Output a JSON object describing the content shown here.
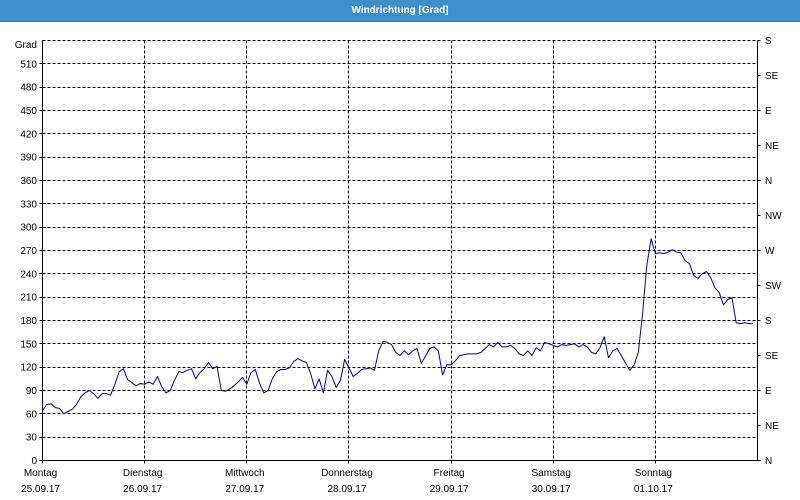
{
  "colors": {
    "title_bar": "#3e8fc9",
    "title_text": "#ffffff",
    "line": "#0000a8",
    "grid": "#000000",
    "axis": "#000000"
  },
  "chart_data": {
    "type": "line",
    "title": "Windrichtung [Grad]",
    "xlabel": "",
    "ylabel": "Grad",
    "ylim": [
      0,
      540
    ],
    "xlim": [
      "25.09.17 00:00",
      "02.10.17 00:00"
    ],
    "grid": true,
    "y_ticks": [
      0,
      30,
      60,
      90,
      120,
      150,
      180,
      210,
      240,
      270,
      300,
      330,
      360,
      390,
      420,
      450,
      480,
      510
    ],
    "y2_ticks": [
      {
        "value": 0,
        "label": "N"
      },
      {
        "value": 45,
        "label": "NE"
      },
      {
        "value": 90,
        "label": "E"
      },
      {
        "value": 135,
        "label": "SE"
      },
      {
        "value": 180,
        "label": "S"
      },
      {
        "value": 225,
        "label": "SW"
      },
      {
        "value": 270,
        "label": "W"
      },
      {
        "value": 315,
        "label": "NW"
      },
      {
        "value": 360,
        "label": "N"
      },
      {
        "value": 405,
        "label": "NE"
      },
      {
        "value": 450,
        "label": "E"
      },
      {
        "value": 495,
        "label": "SE"
      },
      {
        "value": 540,
        "label": "S"
      }
    ],
    "x_ticks": [
      {
        "day": "Montag",
        "date": "25.09.17"
      },
      {
        "day": "Dienstag",
        "date": "26.09.17"
      },
      {
        "day": "Mittwoch",
        "date": "27.09.17"
      },
      {
        "day": "Donnerstag",
        "date": "28.09.17"
      },
      {
        "day": "Freitag",
        "date": "29.09.17"
      },
      {
        "day": "Samstag",
        "date": "30.09.17"
      },
      {
        "day": "Sonntag",
        "date": "01.10.17"
      }
    ],
    "x": [
      "25.09.17 00:00",
      "25.09.17 01:00",
      "25.09.17 02:00",
      "25.09.17 03:00",
      "25.09.17 04:00",
      "25.09.17 05:00",
      "25.09.17 06:00",
      "25.09.17 07:00",
      "25.09.17 08:00",
      "25.09.17 09:00",
      "25.09.17 10:00",
      "25.09.17 11:00",
      "25.09.17 12:00",
      "25.09.17 13:00",
      "25.09.17 14:00",
      "25.09.17 15:00",
      "25.09.17 16:00",
      "25.09.17 17:00",
      "25.09.17 18:00",
      "25.09.17 19:00",
      "25.09.17 20:00",
      "25.09.17 21:00",
      "25.09.17 22:00",
      "25.09.17 23:00",
      "26.09.17 00:00",
      "26.09.17 01:00",
      "26.09.17 02:00",
      "26.09.17 03:00",
      "26.09.17 04:00",
      "26.09.17 05:00",
      "26.09.17 06:00",
      "26.09.17 07:00",
      "26.09.17 08:00",
      "26.09.17 09:00",
      "26.09.17 10:00",
      "26.09.17 11:00",
      "26.09.17 12:00",
      "26.09.17 13:00",
      "26.09.17 14:00",
      "26.09.17 15:00",
      "26.09.17 16:00",
      "26.09.17 17:00",
      "26.09.17 18:00",
      "26.09.17 19:00",
      "26.09.17 20:00",
      "26.09.17 21:00",
      "26.09.17 22:00",
      "26.09.17 23:00",
      "27.09.17 00:00",
      "27.09.17 01:00",
      "27.09.17 02:00",
      "27.09.17 03:00",
      "27.09.17 04:00",
      "27.09.17 05:00",
      "27.09.17 06:00",
      "27.09.17 07:00",
      "27.09.17 08:00",
      "27.09.17 09:00",
      "27.09.17 10:00",
      "27.09.17 11:00",
      "27.09.17 12:00",
      "27.09.17 13:00",
      "27.09.17 14:00",
      "27.09.17 15:00",
      "27.09.17 16:00",
      "27.09.17 17:00",
      "27.09.17 18:00",
      "27.09.17 19:00",
      "27.09.17 20:00",
      "27.09.17 21:00",
      "27.09.17 22:00",
      "27.09.17 23:00",
      "28.09.17 00:00",
      "28.09.17 01:00",
      "28.09.17 02:00",
      "28.09.17 03:00",
      "28.09.17 04:00",
      "28.09.17 05:00",
      "28.09.17 06:00",
      "28.09.17 07:00",
      "28.09.17 08:00",
      "28.09.17 09:00",
      "28.09.17 10:00",
      "28.09.17 11:00",
      "28.09.17 12:00",
      "28.09.17 13:00",
      "28.09.17 14:00",
      "28.09.17 15:00",
      "28.09.17 16:00",
      "28.09.17 17:00",
      "28.09.17 18:00",
      "28.09.17 19:00",
      "28.09.17 20:00",
      "28.09.17 21:00",
      "28.09.17 22:00",
      "28.09.17 23:00",
      "29.09.17 00:00",
      "29.09.17 01:00",
      "29.09.17 02:00",
      "29.09.17 03:00",
      "29.09.17 04:00",
      "29.09.17 05:00",
      "29.09.17 06:00",
      "29.09.17 07:00",
      "29.09.17 08:00",
      "29.09.17 09:00",
      "29.09.17 10:00",
      "29.09.17 11:00",
      "29.09.17 12:00",
      "29.09.17 13:00",
      "29.09.17 14:00",
      "29.09.17 15:00",
      "29.09.17 16:00",
      "29.09.17 17:00",
      "29.09.17 18:00",
      "29.09.17 19:00",
      "29.09.17 20:00",
      "29.09.17 21:00",
      "29.09.17 22:00",
      "29.09.17 23:00",
      "30.09.17 00:00",
      "30.09.17 01:00",
      "30.09.17 02:00",
      "30.09.17 03:00",
      "30.09.17 04:00",
      "30.09.17 05:00",
      "30.09.17 06:00",
      "30.09.17 07:00",
      "30.09.17 08:00",
      "30.09.17 09:00",
      "30.09.17 10:00",
      "30.09.17 11:00",
      "30.09.17 12:00",
      "30.09.17 13:00",
      "30.09.17 14:00",
      "30.09.17 15:00",
      "30.09.17 16:00",
      "30.09.17 17:00",
      "30.09.17 18:00",
      "30.09.17 19:00",
      "30.09.17 20:00",
      "30.09.17 21:00",
      "30.09.17 22:00",
      "30.09.17 23:00",
      "01.10.17 00:00",
      "01.10.17 01:00",
      "01.10.17 02:00",
      "01.10.17 03:00",
      "01.10.17 04:00",
      "01.10.17 05:00",
      "01.10.17 06:00",
      "01.10.17 07:00",
      "01.10.17 08:00",
      "01.10.17 09:00",
      "01.10.17 10:00",
      "01.10.17 11:00",
      "01.10.17 12:00",
      "01.10.17 13:00",
      "01.10.17 14:00",
      "01.10.17 15:00",
      "01.10.17 16:00",
      "01.10.17 17:00",
      "01.10.17 18:00",
      "01.10.17 19:00",
      "01.10.17 20:00",
      "01.10.17 21:00",
      "01.10.17 22:00",
      "01.10.17 23:00"
    ],
    "series": [
      {
        "values": [
          64,
          72,
          73,
          68,
          67,
          60,
          63,
          66,
          72,
          82,
          87,
          90,
          86,
          80,
          86,
          86,
          84,
          98,
          114,
          118,
          104,
          100,
          96,
          99,
          98,
          101,
          98,
          108,
          95,
          87,
          90,
          103,
          114,
          113,
          116,
          118,
          105,
          113,
          118,
          126,
          118,
          121,
          90,
          89,
          92,
          96,
          101,
          107,
          98,
          113,
          117,
          99,
          87,
          90,
          105,
          114,
          117,
          117,
          119,
          127,
          131,
          128,
          126,
          112,
          92,
          105,
          87,
          116,
          108,
          94,
          103,
          130,
          119,
          108,
          112,
          117,
          118,
          119,
          116,
          141,
          153,
          152,
          149,
          139,
          135,
          141,
          136,
          141,
          144,
          125,
          134,
          144,
          146,
          141,
          110,
          123,
          123,
          128,
          135,
          136,
          137,
          137,
          137,
          139,
          144,
          149,
          146,
          152,
          146,
          146,
          148,
          144,
          137,
          135,
          141,
          135,
          145,
          141,
          152,
          150,
          148,
          146,
          149,
          148,
          149,
          150,
          146,
          149,
          146,
          139,
          137,
          145,
          159,
          132,
          141,
          144,
          135,
          125,
          116,
          123,
          139,
          189,
          251,
          285,
          266,
          267,
          266,
          268,
          271,
          268,
          267,
          257,
          253,
          238,
          234,
          240,
          243,
          235,
          222,
          216,
          200,
          207,
          209,
          177,
          176,
          177,
          176,
          176
        ]
      }
    ]
  }
}
